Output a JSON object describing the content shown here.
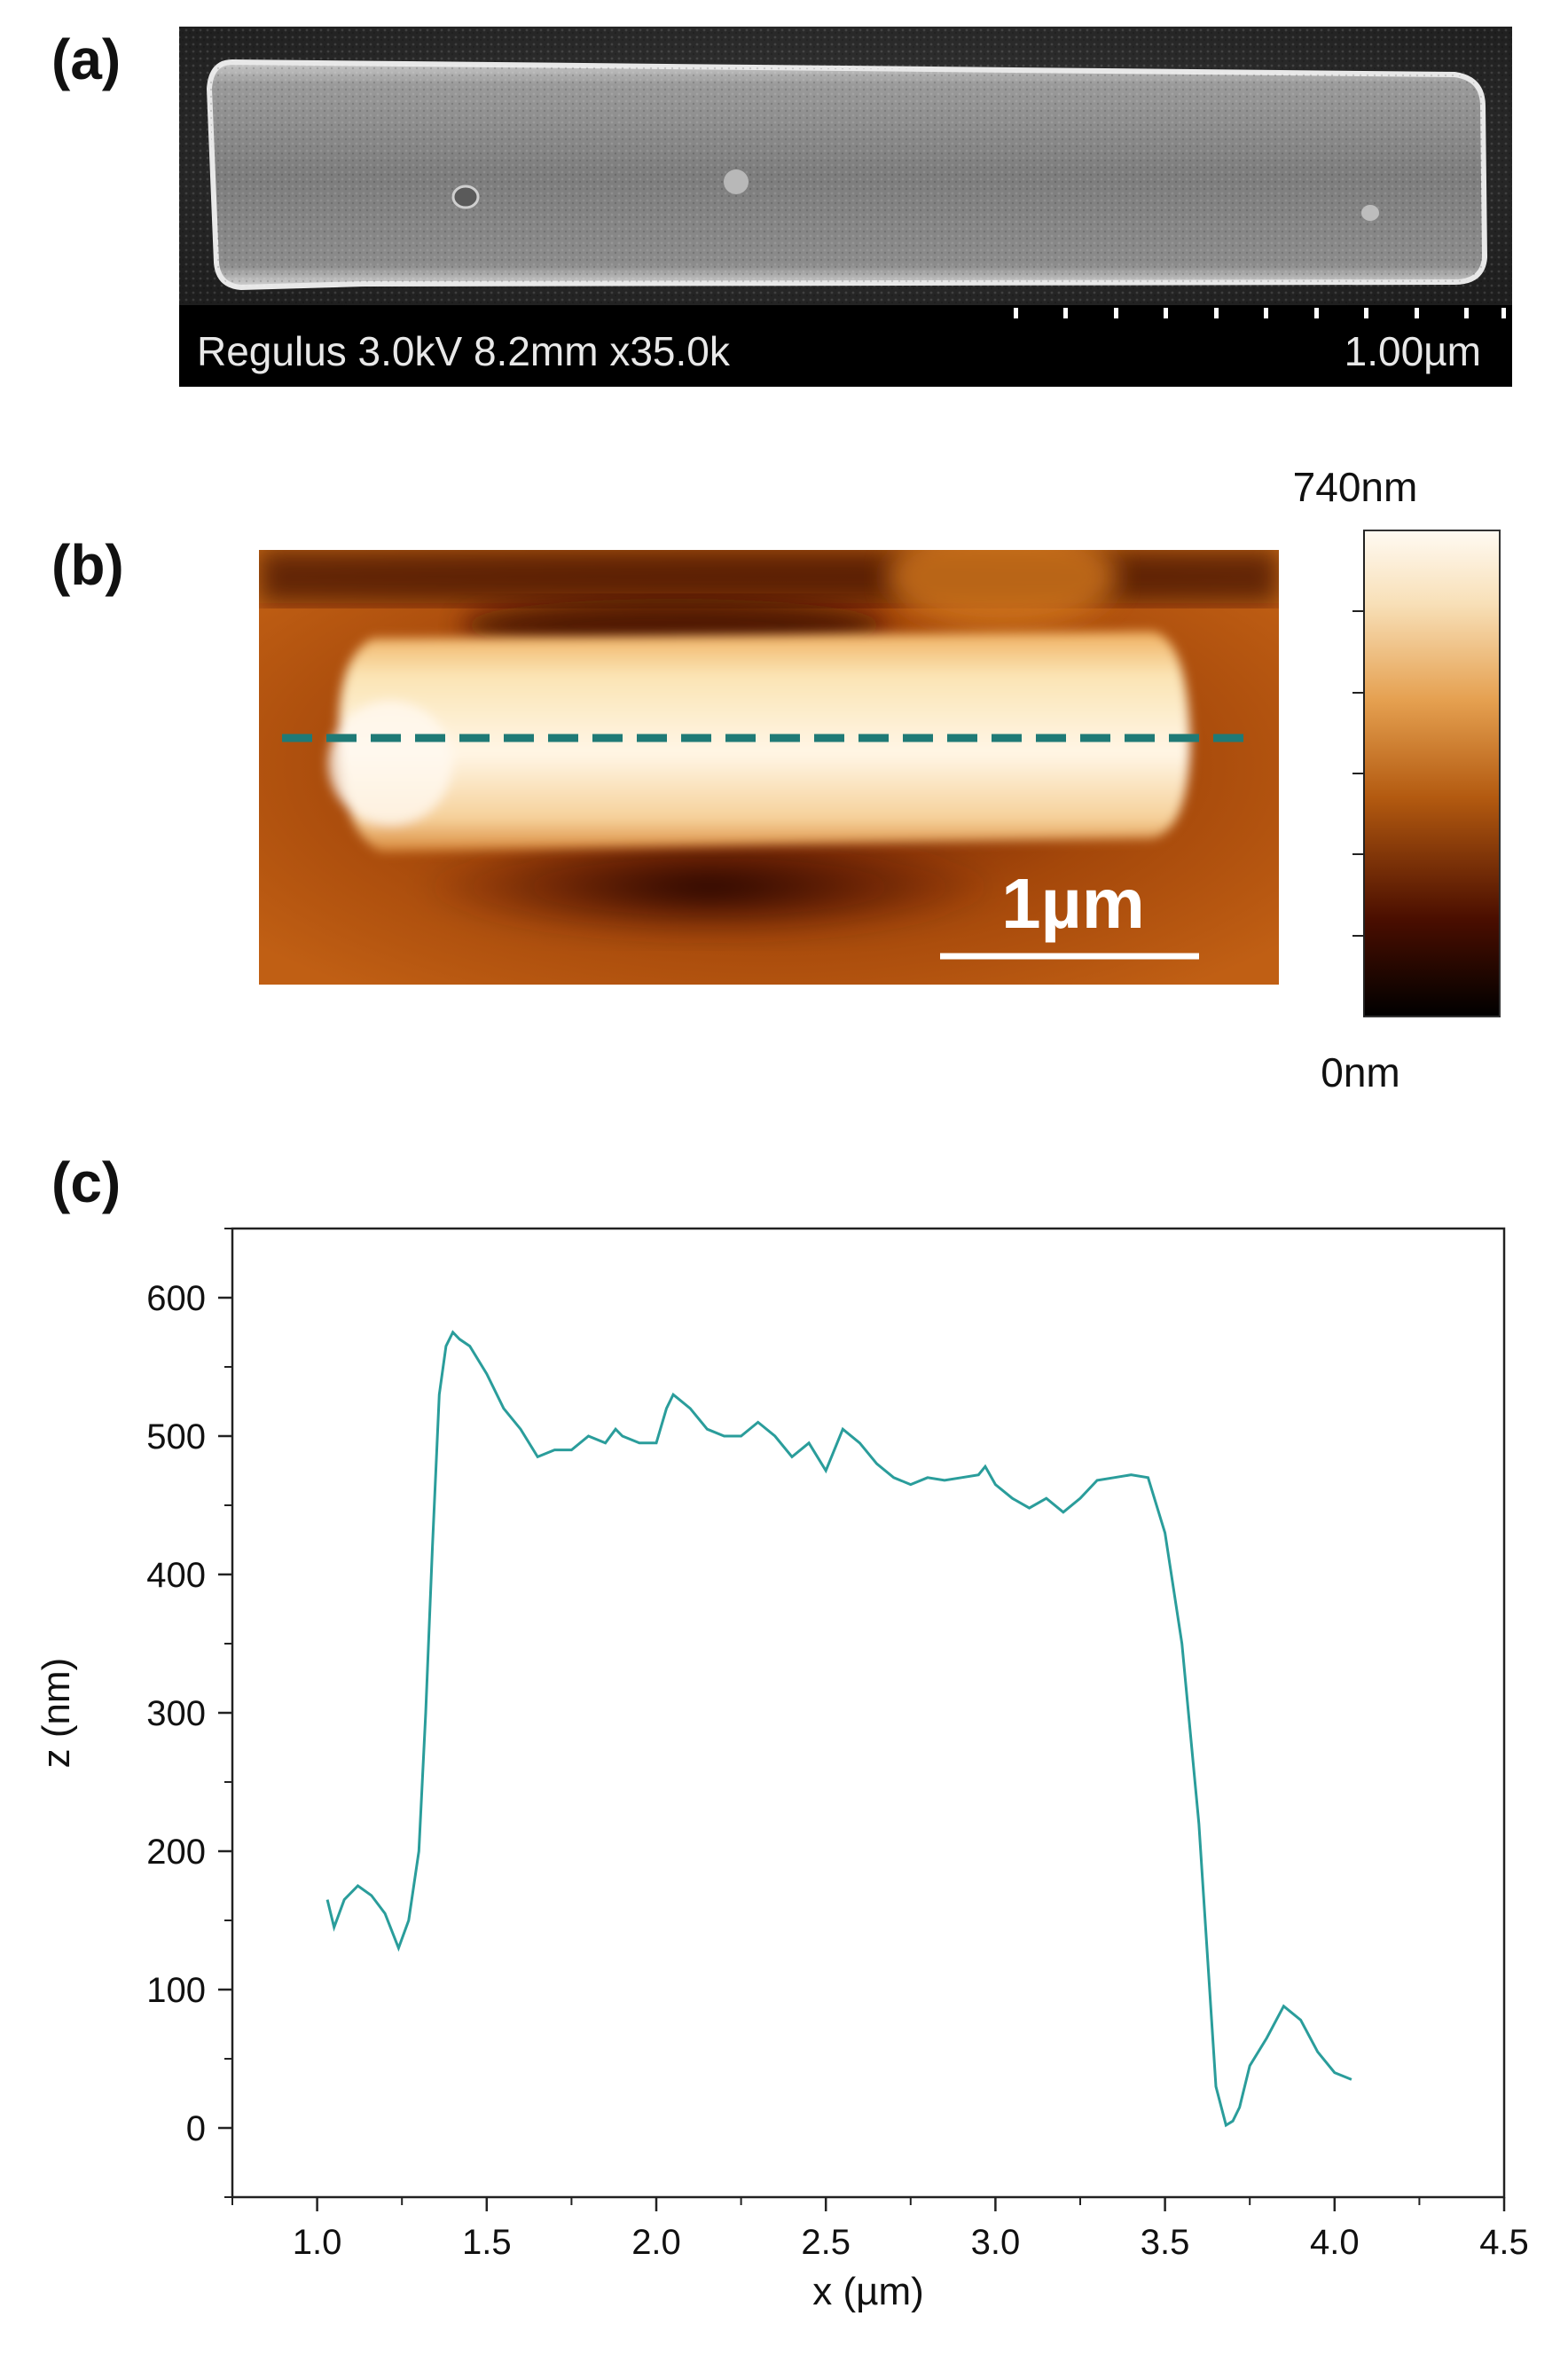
{
  "panels": {
    "a": {
      "label": "(a)",
      "sem_info": "Regulus 3.0kV 8.2mm x35.0k",
      "scale_text": "1.00µm"
    },
    "b": {
      "label": "(b)",
      "scalebar_text": "1µm",
      "colorbar_max": "740nm",
      "colorbar_min": "0nm"
    },
    "c": {
      "label": "(c)"
    }
  },
  "colors": {
    "profile_line": "#2a9d9b",
    "dashed_line": "#1f7a76",
    "sem_infobar": "#000000",
    "afm_dark": "#1a0400",
    "afm_mid": "#b3560e",
    "afm_light": "#fff8ee"
  },
  "chart_data": {
    "type": "line",
    "xlabel": "x (µm)",
    "ylabel": "z (nm)",
    "xlim": [
      0.75,
      4.5
    ],
    "ylim": [
      -50,
      650
    ],
    "xticks": [
      "1.0",
      "1.5",
      "2.0",
      "2.5",
      "3.0",
      "3.5",
      "4.0",
      "4.5"
    ],
    "yticks": [
      "0",
      "100",
      "200",
      "300",
      "400",
      "500",
      "600"
    ],
    "grid": false,
    "series": [
      {
        "x": [
          1.03,
          1.05,
          1.08,
          1.12,
          1.16,
          1.2,
          1.24,
          1.27,
          1.3,
          1.32,
          1.34,
          1.36,
          1.38,
          1.4,
          1.42,
          1.45,
          1.5,
          1.55,
          1.6,
          1.65,
          1.7,
          1.75,
          1.8,
          1.85,
          1.88,
          1.9,
          1.95,
          2.0,
          2.03,
          2.05,
          2.1,
          2.15,
          2.2,
          2.25,
          2.3,
          2.35,
          2.4,
          2.45,
          2.5,
          2.55,
          2.6,
          2.65,
          2.7,
          2.75,
          2.8,
          2.85,
          2.9,
          2.95,
          2.97,
          3.0,
          3.05,
          3.1,
          3.15,
          3.2,
          3.25,
          3.3,
          3.35,
          3.4,
          3.45,
          3.5,
          3.55,
          3.6,
          3.65,
          3.68,
          3.7,
          3.72,
          3.75,
          3.8,
          3.85,
          3.9,
          3.95,
          4.0,
          4.05
        ],
        "y": [
          165,
          145,
          165,
          175,
          168,
          155,
          130,
          150,
          200,
          300,
          420,
          530,
          565,
          575,
          570,
          565,
          545,
          520,
          505,
          485,
          490,
          490,
          500,
          495,
          505,
          500,
          495,
          495,
          520,
          530,
          520,
          505,
          500,
          500,
          510,
          500,
          485,
          495,
          475,
          505,
          495,
          480,
          470,
          465,
          470,
          468,
          470,
          472,
          478,
          465,
          455,
          448,
          455,
          445,
          455,
          468,
          470,
          472,
          470,
          430,
          350,
          220,
          30,
          2,
          5,
          15,
          45,
          65,
          88,
          78,
          55,
          40,
          35
        ]
      }
    ]
  }
}
